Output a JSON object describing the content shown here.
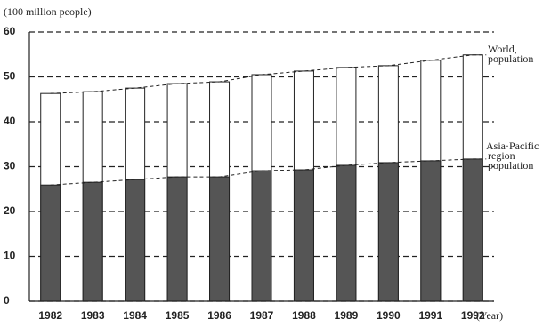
{
  "chart_data": {
    "type": "bar",
    "y_label": "(100 million people)",
    "x_label": "(Year)",
    "categories": [
      "1982",
      "1983",
      "1984",
      "1985",
      "1986",
      "1987",
      "1988",
      "1989",
      "1990",
      "1991",
      "1992"
    ],
    "series": [
      {
        "name": "World, population",
        "color": "#ffffff",
        "values": [
          46.3,
          46.7,
          47.5,
          48.5,
          48.9,
          50.5,
          51.3,
          52.1,
          52.5,
          53.7,
          54.9
        ]
      },
      {
        "name": "Asia·Pacific region population",
        "color": "#555555",
        "values": [
          25.9,
          26.5,
          27.1,
          27.7,
          27.7,
          29.1,
          29.3,
          30.3,
          30.9,
          31.3,
          31.7
        ]
      }
    ],
    "ylim": [
      0,
      60
    ],
    "yticks": [
      0,
      10,
      20,
      30,
      40,
      50,
      60
    ],
    "grid": true
  }
}
